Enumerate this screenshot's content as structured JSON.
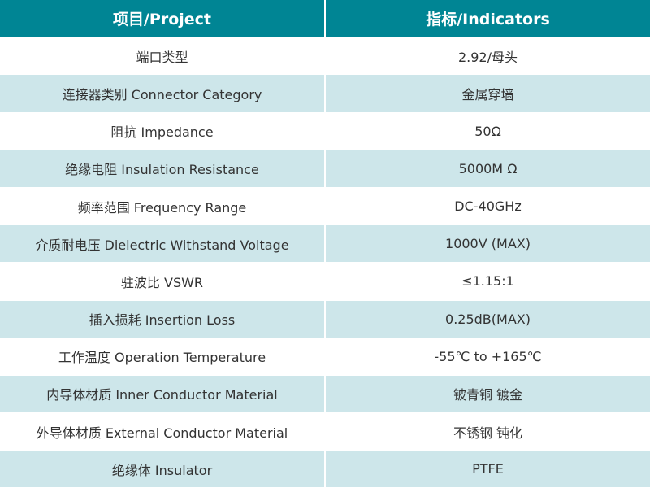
{
  "colors": {
    "header": "#008594",
    "alt_row": "#cde6ea",
    "text": "#333333"
  },
  "header": {
    "project": "项目/Project",
    "indicators": "指标/Indicators"
  },
  "rows": [
    {
      "project": "端口类型",
      "indicator": "2.92/母头"
    },
    {
      "project": "连接器类别 Connector Category",
      "indicator": "金属穿墙"
    },
    {
      "project": "阻抗 Impedance",
      "indicator": "50Ω"
    },
    {
      "project": "绝缘电阻 Insulation Resistance",
      "indicator": "5000M Ω"
    },
    {
      "project": "频率范围 Frequency Range",
      "indicator": "DC-40GHz"
    },
    {
      "project": "介质耐电压 Dielectric Withstand Voltage",
      "indicator": "1000V (MAX)"
    },
    {
      "project": "驻波比 VSWR",
      "indicator": "≤1.15:1"
    },
    {
      "project": "插入损耗 Insertion Loss",
      "indicator": "0.25dB(MAX)"
    },
    {
      "project": "工作温度 Operation Temperature",
      "indicator": "-55℃ to +165℃"
    },
    {
      "project": "内导体材质 Inner Conductor Material",
      "indicator": "铍青铜 镀金"
    },
    {
      "project": "外导体材质 External Conductor Material",
      "indicator": "不锈钢 钝化"
    },
    {
      "project": "绝缘体 Insulator",
      "indicator": "PTFE"
    }
  ]
}
